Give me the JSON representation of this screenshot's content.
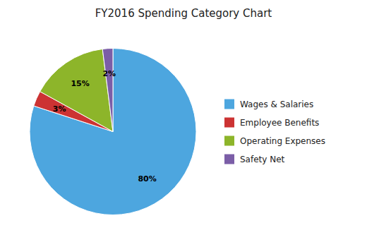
{
  "chart_data": {
    "type": "pie",
    "title": "FY2016 Spending Category Chart",
    "categories": [
      "Wages & Salaries",
      "Employee Benefits",
      "Operating Expenses",
      "Safety Net"
    ],
    "values": [
      80,
      3,
      15,
      2
    ],
    "value_labels": [
      "80%",
      "3%",
      "15%",
      "2%"
    ],
    "colors": [
      "#4da6df",
      "#cc3333",
      "#8db52a",
      "#7b5ea7"
    ],
    "data_labels": true,
    "legend": "right"
  }
}
